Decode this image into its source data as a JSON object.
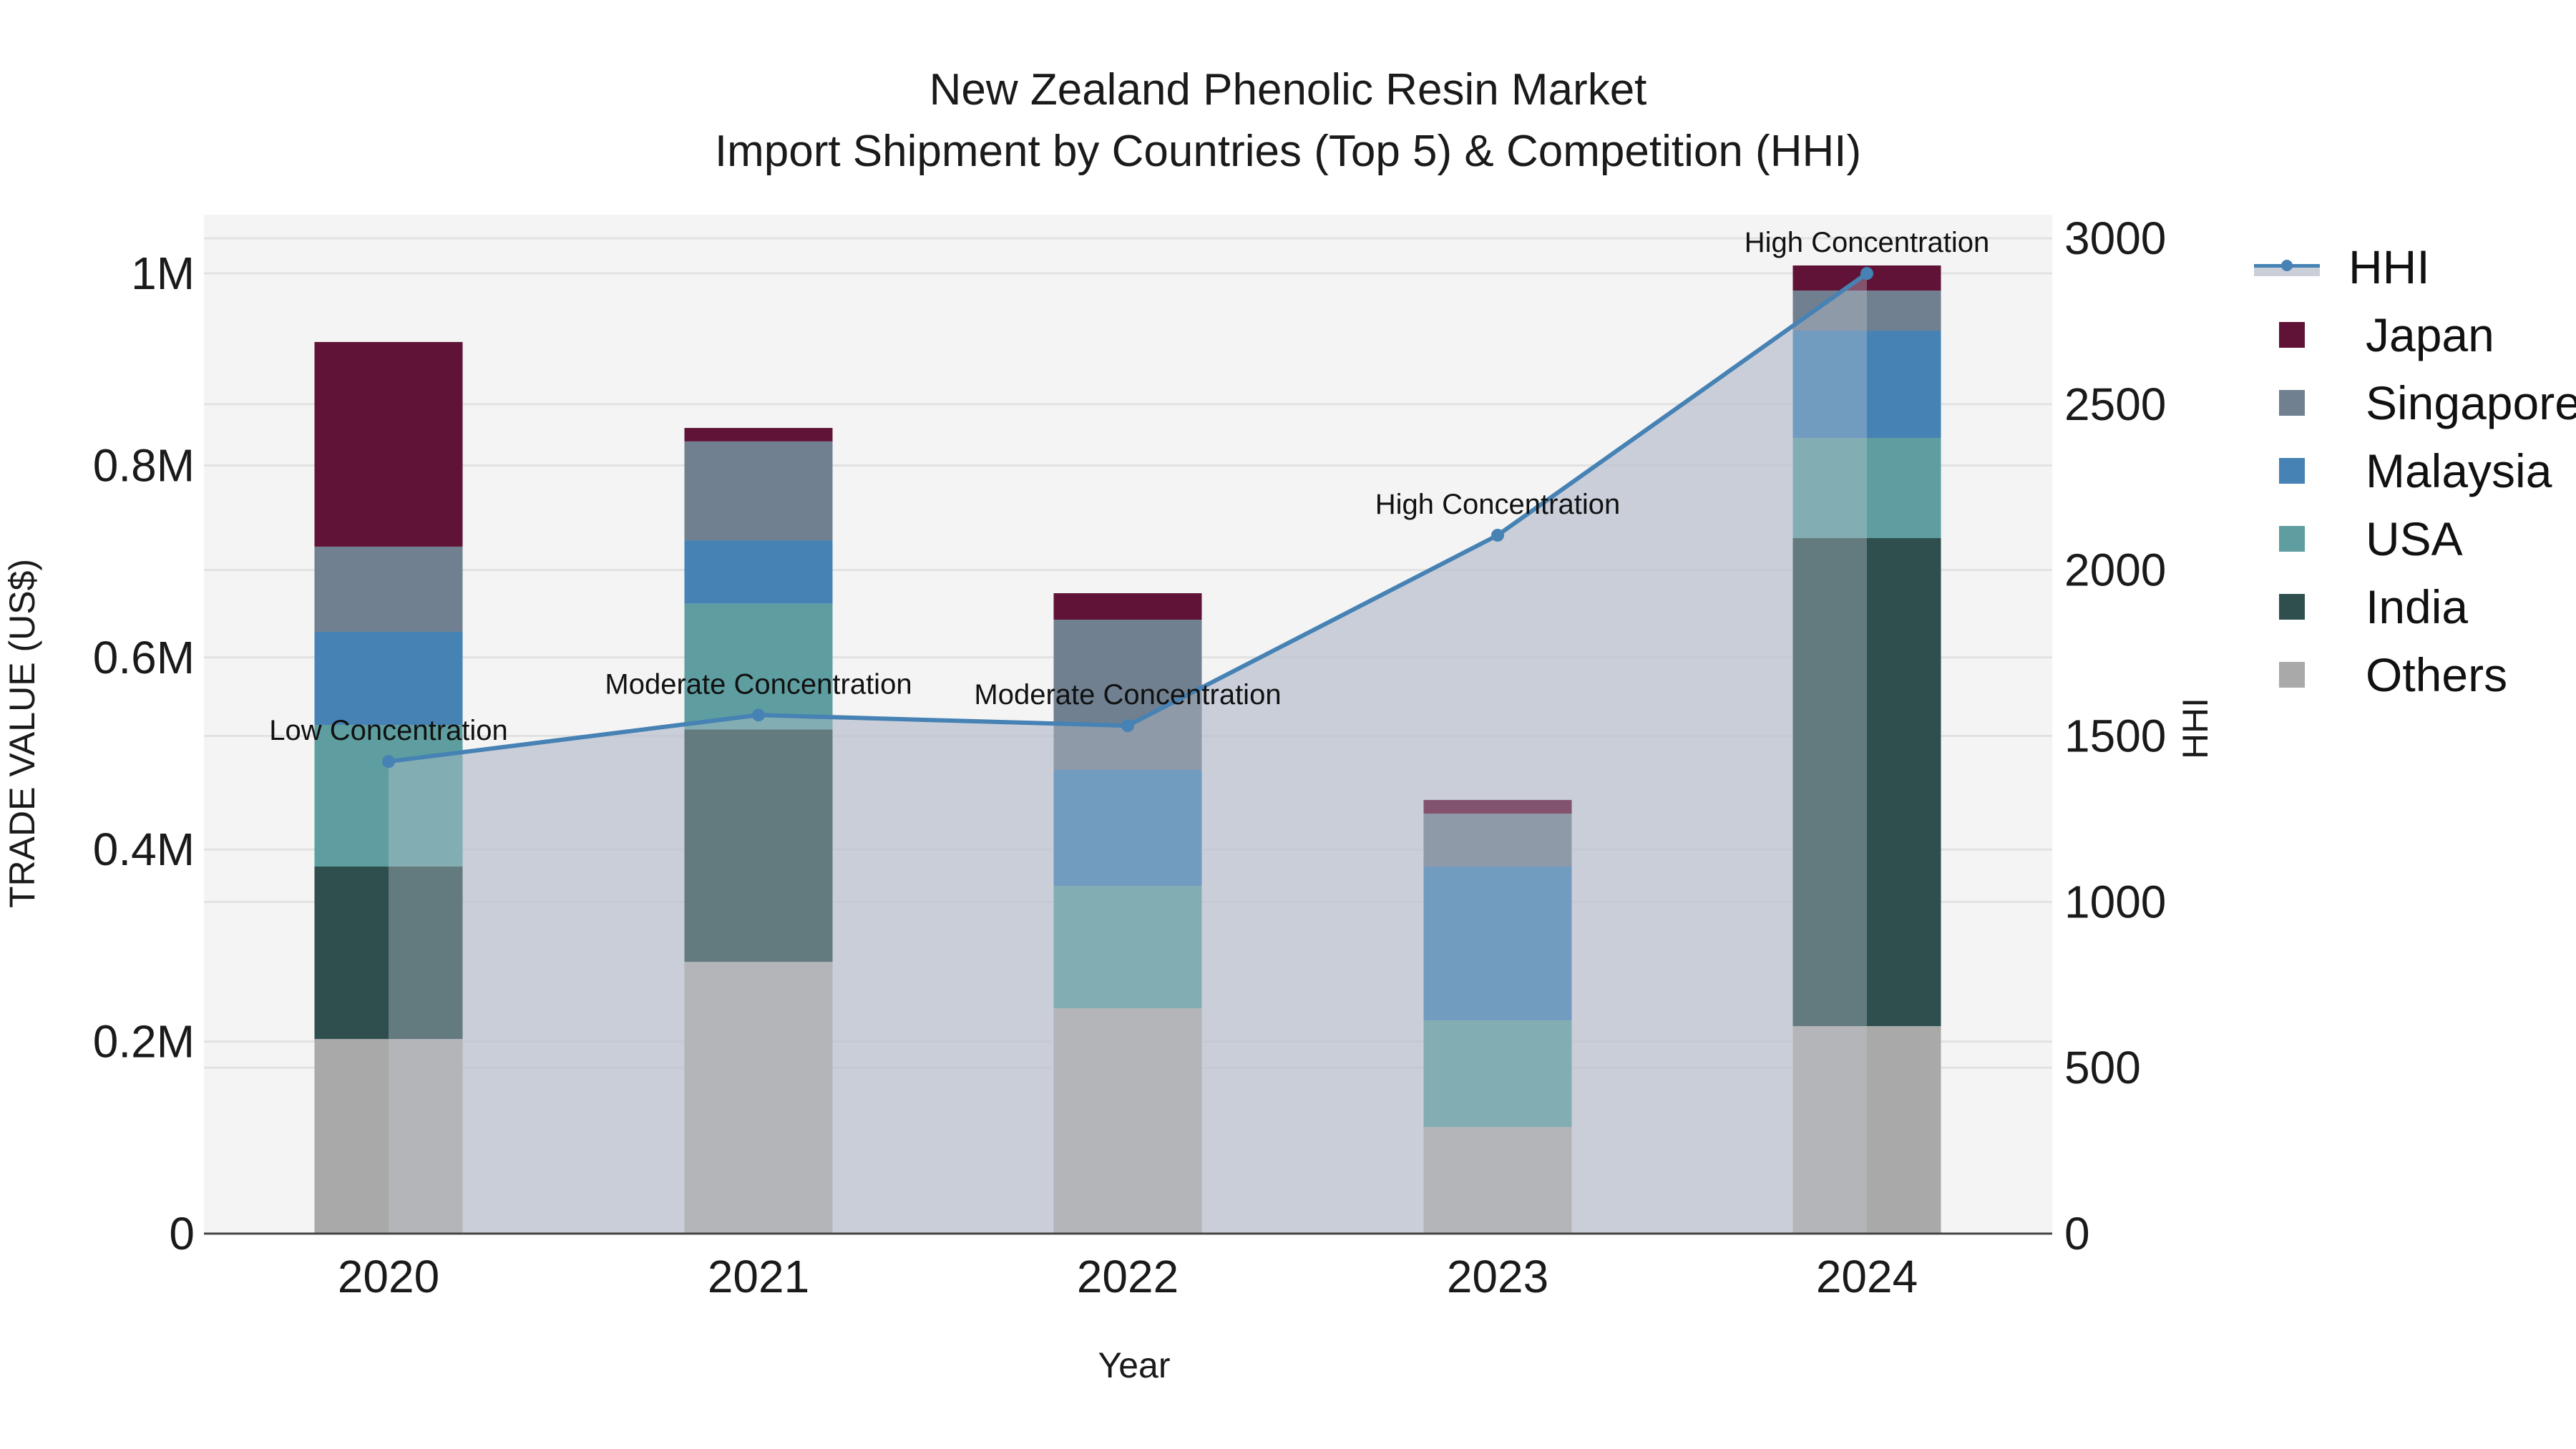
{
  "title": {
    "line1": "New Zealand Phenolic Resin Market",
    "line2": "Import Shipment by Countries (Top 5) & Competition (HHI)"
  },
  "axes": {
    "x_title": "Year",
    "y_left_title": "TRADE VALUE (US$)",
    "y_right_title": "HHI",
    "y_left_ticks": [
      "0",
      "0.2M",
      "0.4M",
      "0.6M",
      "0.8M",
      "1M"
    ],
    "y_right_ticks": [
      "0",
      "500",
      "1000",
      "1500",
      "2000",
      "2500",
      "3000"
    ],
    "x_ticks": [
      "2020",
      "2021",
      "2022",
      "2023",
      "2024"
    ]
  },
  "legend": [
    {
      "name": "HHI",
      "type": "line",
      "color": "#4682b4"
    },
    {
      "name": "Japan",
      "type": "bar",
      "color": "#601336"
    },
    {
      "name": "Singapore",
      "type": "bar",
      "color": "#708090"
    },
    {
      "name": "Malaysia",
      "type": "bar",
      "color": "#4682b4"
    },
    {
      "name": "USA",
      "type": "bar",
      "color": "#5f9ea0"
    },
    {
      "name": "India",
      "type": "bar",
      "color": "#2f4f4f"
    },
    {
      "name": "Others",
      "type": "bar",
      "color": "#a9a9a9"
    }
  ],
  "annotations": [
    {
      "year": "2020",
      "text": "Low Concentration"
    },
    {
      "year": "2021",
      "text": "Moderate Concentration"
    },
    {
      "year": "2022",
      "text": "Moderate Concentration"
    },
    {
      "year": "2023",
      "text": "High Concentration"
    },
    {
      "year": "2024",
      "text": "High Concentration"
    }
  ],
  "chart_data": {
    "type": "bar",
    "subtype": "stacked bar + line (secondary axis) with area fill",
    "title": "New Zealand Phenolic Resin Market — Import Shipment by Countries (Top 5) & Competition (HHI)",
    "xlabel": "Year",
    "ylabel": "TRADE VALUE (US$)",
    "y2label": "HHI",
    "categories": [
      "2020",
      "2021",
      "2022",
      "2023",
      "2024"
    ],
    "ylim": [
      0,
      1060000
    ],
    "y2lim": [
      0,
      3070
    ],
    "stack_order_bottom_to_top": [
      "Others",
      "India",
      "USA",
      "Malaysia",
      "Singapore",
      "Japan"
    ],
    "series": [
      {
        "name": "Others",
        "axis": "left",
        "color": "#a9a9a9",
        "values": [
          202700,
          283000,
          234700,
          111000,
          216100
        ]
      },
      {
        "name": "India",
        "axis": "left",
        "color": "#2f4f4f",
        "values": [
          179600,
          242000,
          0,
          0,
          508200
        ]
      },
      {
        "name": "USA",
        "axis": "left",
        "color": "#5f9ea0",
        "values": [
          147500,
          131000,
          127400,
          111100,
          104300
        ]
      },
      {
        "name": "Malaysia",
        "axis": "left",
        "color": "#4682b4",
        "values": [
          96900,
          66000,
          120800,
          160200,
          111800
        ]
      },
      {
        "name": "Singapore",
        "axis": "left",
        "color": "#708090",
        "values": [
          88700,
          103000,
          156400,
          55100,
          41700
        ]
      },
      {
        "name": "Japan",
        "axis": "left",
        "color": "#601336",
        "values": [
          213100,
          14000,
          27600,
          14200,
          26100
        ]
      },
      {
        "name": "HHI",
        "axis": "right",
        "type": "line",
        "color": "#4682b4",
        "values": [
          1423,
          1563,
          1531,
          2105,
          2894
        ]
      }
    ],
    "totals": [
      928500,
      839000,
      666900,
      451600,
      1008200
    ],
    "annotations": [
      "Low Concentration",
      "Moderate Concentration",
      "Moderate Concentration",
      "High Concentration",
      "High Concentration"
    ],
    "grid": true,
    "legend_position": "right"
  }
}
